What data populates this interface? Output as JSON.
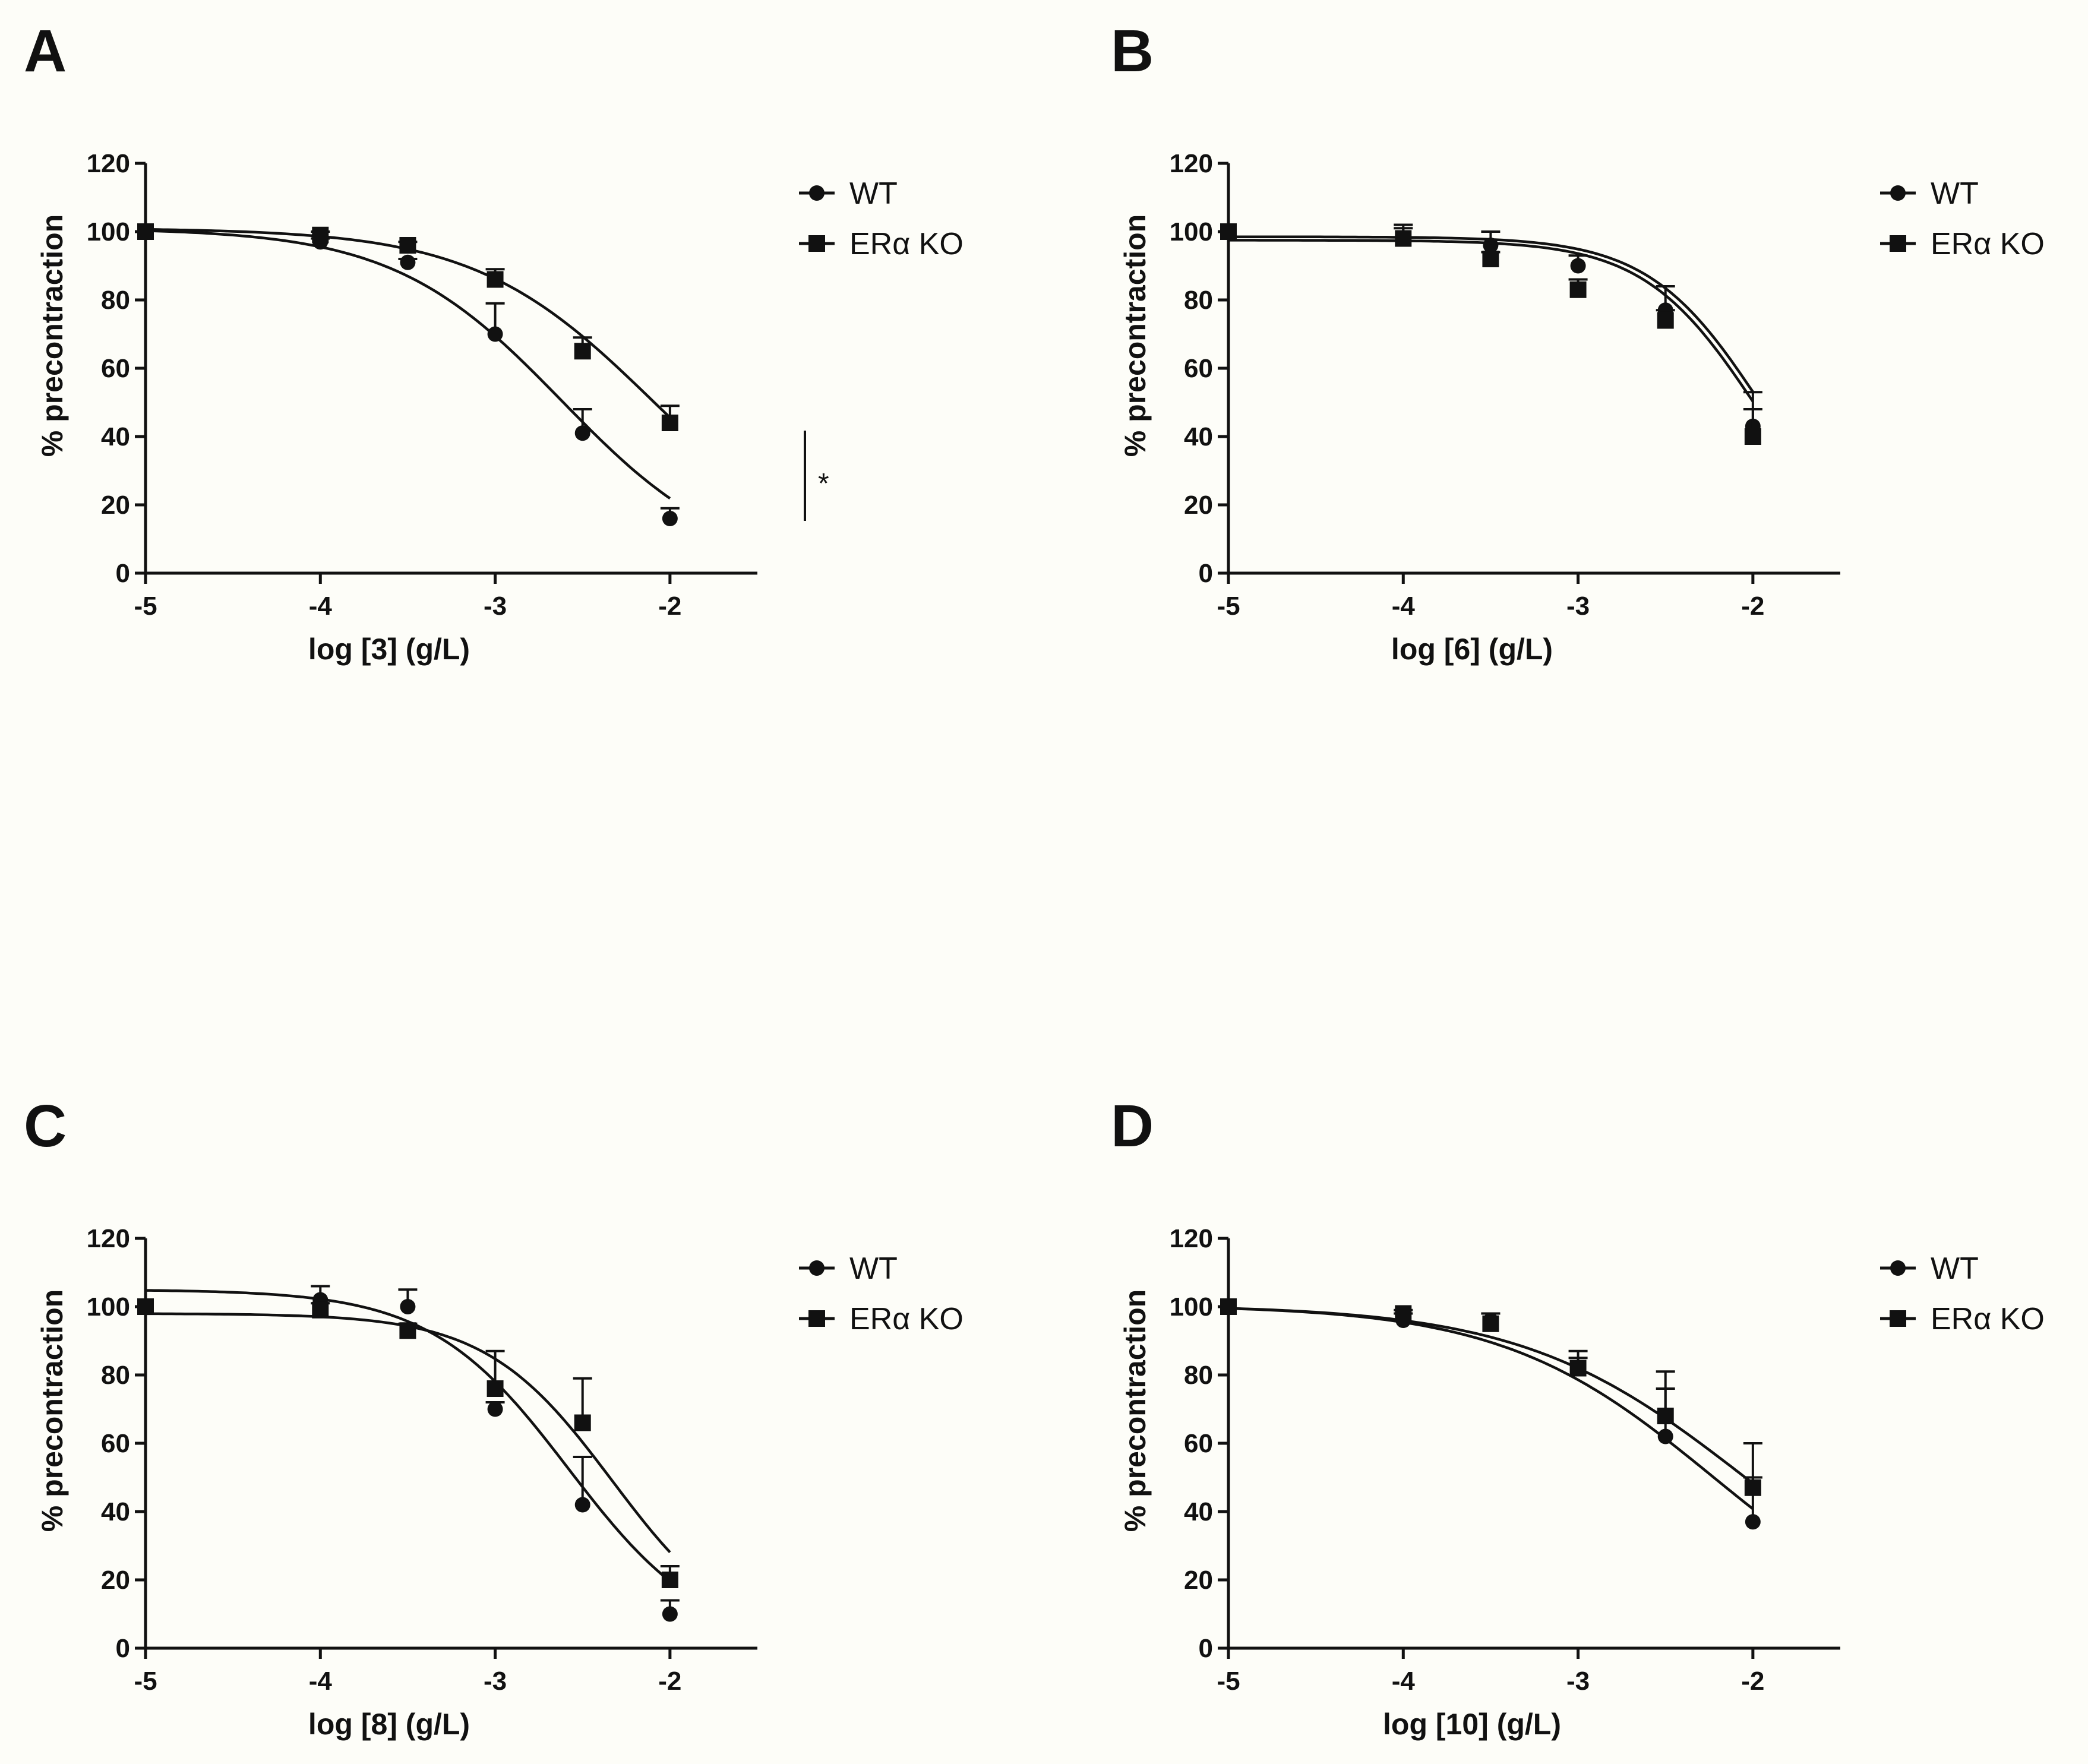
{
  "chart_data": [
    {
      "panel": "A",
      "type": "line",
      "xlabel": "log [3] (g/L)",
      "ylabel": "% precontraction",
      "xlim": [
        -5,
        -1.5
      ],
      "ylim": [
        0,
        120
      ],
      "xticks": [
        "-5",
        "-4",
        "-3",
        "-2"
      ],
      "yticks": [
        "0",
        "20",
        "40",
        "60",
        "80",
        "100",
        "120"
      ],
      "annotation": "*",
      "series": [
        {
          "name": "WT",
          "marker": "circle",
          "points": [
            {
              "x": -5,
              "y": 100,
              "err": 0
            },
            {
              "x": -4,
              "y": 97,
              "err": 1
            },
            {
              "x": -3.5,
              "y": 91,
              "err": 1
            },
            {
              "x": -3,
              "y": 70,
              "err": 9
            },
            {
              "x": -2.5,
              "y": 41,
              "err": 7
            },
            {
              "x": -2,
              "y": 16,
              "err": 3
            }
          ],
          "fit": {
            "top": 101,
            "bottom": 0,
            "logIC50": -2.62,
            "hill": 0.9
          }
        },
        {
          "name": "ERα KO",
          "marker": "square",
          "points": [
            {
              "x": -5,
              "y": 100,
              "err": 0
            },
            {
              "x": -4,
              "y": 99,
              "err": 1
            },
            {
              "x": -3.5,
              "y": 96,
              "err": 1
            },
            {
              "x": -3,
              "y": 86,
              "err": 3
            },
            {
              "x": -2.5,
              "y": 65,
              "err": 4
            },
            {
              "x": -2,
              "y": 44,
              "err": 5
            }
          ],
          "fit": {
            "top": 101,
            "bottom": 0,
            "logIC50": -2.1,
            "hill": 0.85
          }
        }
      ]
    },
    {
      "panel": "B",
      "type": "line",
      "xlabel": "log [6] (g/L)",
      "ylabel": "% precontraction",
      "xlim": [
        -5,
        -1.5
      ],
      "ylim": [
        0,
        120
      ],
      "xticks": [
        "-5",
        "-4",
        "-3",
        "-2"
      ],
      "yticks": [
        "0",
        "20",
        "40",
        "60",
        "80",
        "100",
        "120"
      ],
      "series": [
        {
          "name": "WT",
          "marker": "circle",
          "points": [
            {
              "x": -5,
              "y": 100,
              "err": 0
            },
            {
              "x": -4,
              "y": 98,
              "err": 4
            },
            {
              "x": -3.5,
              "y": 96,
              "err": 4
            },
            {
              "x": -3,
              "y": 90,
              "err": 3
            },
            {
              "x": -2.5,
              "y": 77,
              "err": 7
            },
            {
              "x": -2,
              "y": 43,
              "err": 10
            }
          ],
          "fit": {
            "top": 98.5,
            "bottom": 0,
            "logIC50": -1.95,
            "hill": 1.35
          }
        },
        {
          "name": "ERα KO",
          "marker": "square",
          "points": [
            {
              "x": -5,
              "y": 100,
              "err": 0
            },
            {
              "x": -4,
              "y": 98,
              "err": 3
            },
            {
              "x": -3.5,
              "y": 92,
              "err": 2
            },
            {
              "x": -3,
              "y": 83,
              "err": 3
            },
            {
              "x": -2.5,
              "y": 74,
              "err": 3
            },
            {
              "x": -2,
              "y": 40,
              "err": 8
            }
          ],
          "fit": {
            "top": 97.5,
            "bottom": 0,
            "logIC50": -1.98,
            "hill": 1.35
          }
        }
      ]
    },
    {
      "panel": "C",
      "type": "line",
      "xlabel": "log [8] (g/L)",
      "ylabel": "% precontraction",
      "xlim": [
        -5,
        -1.5
      ],
      "ylim": [
        0,
        120
      ],
      "xticks": [
        "-5",
        "-4",
        "-3",
        "-2"
      ],
      "yticks": [
        "0",
        "20",
        "40",
        "60",
        "80",
        "100",
        "120"
      ],
      "series": [
        {
          "name": "WT",
          "marker": "circle",
          "points": [
            {
              "x": -5,
              "y": 100,
              "err": 0
            },
            {
              "x": -4,
              "y": 102,
              "err": 4
            },
            {
              "x": -3.5,
              "y": 100,
              "err": 5
            },
            {
              "x": -3,
              "y": 70,
              "err": 2
            },
            {
              "x": -2.5,
              "y": 42,
              "err": 14
            },
            {
              "x": -2,
              "y": 10,
              "err": 4
            }
          ],
          "fit": {
            "top": 105,
            "bottom": 0,
            "logIC50": -2.58,
            "hill": 1.1
          }
        },
        {
          "name": "ERα KO",
          "marker": "square",
          "points": [
            {
              "x": -5,
              "y": 100,
              "err": 0
            },
            {
              "x": -4,
              "y": 99,
              "err": 2
            },
            {
              "x": -3.5,
              "y": 93,
              "err": 2
            },
            {
              "x": -3,
              "y": 76,
              "err": 11
            },
            {
              "x": -2.5,
              "y": 66,
              "err": 13
            },
            {
              "x": -2,
              "y": 20,
              "err": 4
            }
          ],
          "fit": {
            "top": 98,
            "bottom": 0,
            "logIC50": -2.33,
            "hill": 1.2
          }
        }
      ]
    },
    {
      "panel": "D",
      "type": "line",
      "xlabel": "log [10] (g/L)",
      "ylabel": "% precontraction",
      "xlim": [
        -5,
        -1.5
      ],
      "ylim": [
        0,
        120
      ],
      "xticks": [
        "-5",
        "-4",
        "-3",
        "-2"
      ],
      "yticks": [
        "0",
        "20",
        "40",
        "60",
        "80",
        "100",
        "120"
      ],
      "series": [
        {
          "name": "WT",
          "marker": "circle",
          "points": [
            {
              "x": -5,
              "y": 100,
              "err": 0
            },
            {
              "x": -4,
              "y": 96,
              "err": 2
            },
            {
              "x": -3.5,
              "y": 96,
              "err": 2
            },
            {
              "x": -3,
              "y": 82,
              "err": 5
            },
            {
              "x": -2.5,
              "y": 62,
              "err": 14
            },
            {
              "x": -2,
              "y": 37,
              "err": 13
            }
          ],
          "fit": {
            "top": 100.5,
            "bottom": 0,
            "logIC50": -2.23,
            "hill": 0.72
          }
        },
        {
          "name": "ERα KO",
          "marker": "square",
          "points": [
            {
              "x": -5,
              "y": 100,
              "err": 0
            },
            {
              "x": -4,
              "y": 98,
              "err": 1
            },
            {
              "x": -3.5,
              "y": 95,
              "err": 3
            },
            {
              "x": -3,
              "y": 82,
              "err": 3
            },
            {
              "x": -2.5,
              "y": 68,
              "err": 13
            },
            {
              "x": -2,
              "y": 47,
              "err": 13
            }
          ],
          "fit": {
            "top": 100.5,
            "bottom": 0,
            "logIC50": -2.05,
            "hill": 0.68
          }
        }
      ]
    }
  ]
}
